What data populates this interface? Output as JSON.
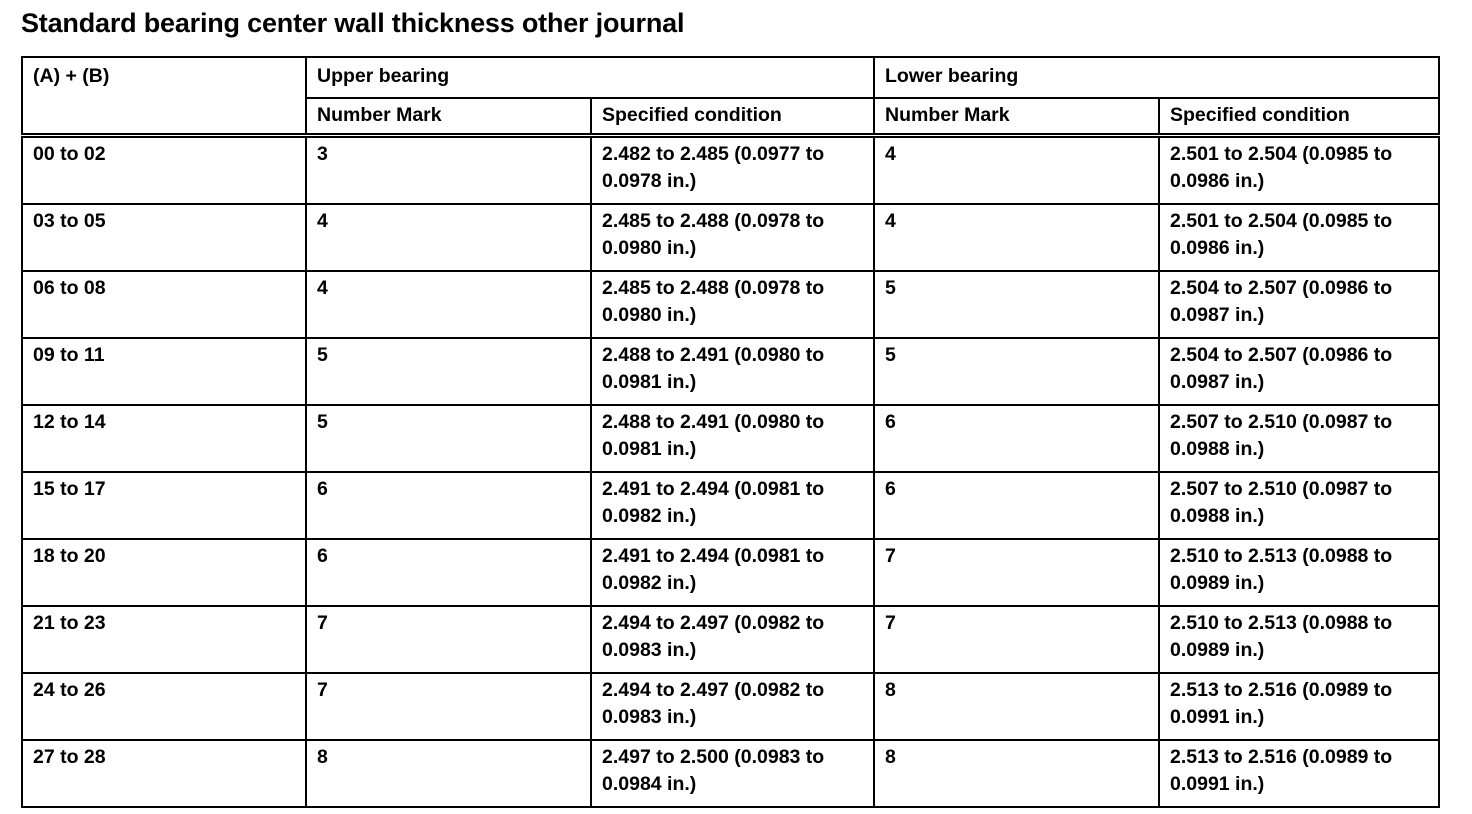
{
  "title": "Standard bearing center wall thickness other journal",
  "table": {
    "header": {
      "ab": "(A) + (B)",
      "upper": "Upper bearing",
      "lower": "Lower bearing",
      "number_mark": "Number Mark",
      "specified_condition": "Specified condition"
    },
    "rows": [
      {
        "ab": "00 to 02",
        "upper_mark": "3",
        "upper_spec": "2.482 to 2.485 (0.0977 to 0.0978 in.)",
        "lower_mark": "4",
        "lower_spec": "2.501 to 2.504 (0.0985 to 0.0986 in.)"
      },
      {
        "ab": "03 to 05",
        "upper_mark": "4",
        "upper_spec": "2.485 to 2.488 (0.0978 to 0.0980 in.)",
        "lower_mark": "4",
        "lower_spec": "2.501 to 2.504 (0.0985 to 0.0986 in.)"
      },
      {
        "ab": "06 to 08",
        "upper_mark": "4",
        "upper_spec": "2.485 to 2.488 (0.0978 to 0.0980 in.)",
        "lower_mark": "5",
        "lower_spec": "2.504 to 2.507 (0.0986 to 0.0987 in.)"
      },
      {
        "ab": "09 to 11",
        "upper_mark": "5",
        "upper_spec": "2.488 to 2.491 (0.0980 to 0.0981 in.)",
        "lower_mark": "5",
        "lower_spec": "2.504 to 2.507 (0.0986 to 0.0987 in.)"
      },
      {
        "ab": "12 to 14",
        "upper_mark": "5",
        "upper_spec": "2.488 to 2.491 (0.0980 to 0.0981 in.)",
        "lower_mark": "6",
        "lower_spec": "2.507 to 2.510 (0.0987 to 0.0988 in.)"
      },
      {
        "ab": "15 to 17",
        "upper_mark": "6",
        "upper_spec": "2.491 to 2.494 (0.0981 to 0.0982 in.)",
        "lower_mark": "6",
        "lower_spec": "2.507 to 2.510 (0.0987 to 0.0988 in.)"
      },
      {
        "ab": "18 to 20",
        "upper_mark": "6",
        "upper_spec": "2.491 to 2.494 (0.0981 to 0.0982 in.)",
        "lower_mark": "7",
        "lower_spec": "2.510 to 2.513 (0.0988 to 0.0989 in.)"
      },
      {
        "ab": "21 to 23",
        "upper_mark": "7",
        "upper_spec": "2.494 to 2.497 (0.0982 to 0.0983 in.)",
        "lower_mark": "7",
        "lower_spec": "2.510 to 2.513 (0.0988 to 0.0989 in.)"
      },
      {
        "ab": "24 to 26",
        "upper_mark": "7",
        "upper_spec": "2.494 to 2.497 (0.0982 to 0.0983 in.)",
        "lower_mark": "8",
        "lower_spec": "2.513 to 2.516 (0.0989 to 0.0991 in.)"
      },
      {
        "ab": "27 to 28",
        "upper_mark": "8",
        "upper_spec": "2.497 to 2.500 (0.0983 to 0.0984 in.)",
        "lower_mark": "8",
        "lower_spec": "2.513 to 2.516 (0.0989 to 0.0991 in.)"
      }
    ]
  }
}
